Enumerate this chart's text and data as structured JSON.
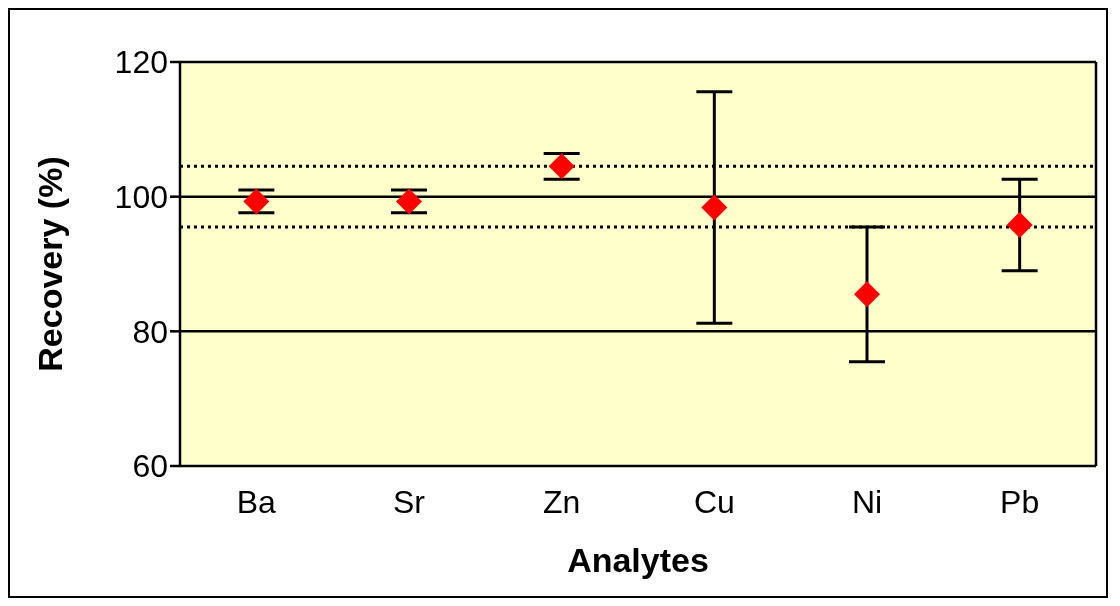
{
  "chart_data": {
    "type": "scatter",
    "xlabel": "Analytes",
    "ylabel": "Recovery (%)",
    "categories": [
      "Ba",
      "Sr",
      "Zn",
      "Cu",
      "Ni",
      "Pb"
    ],
    "values": [
      99.3,
      99.3,
      104.5,
      98.4,
      85.5,
      95.8
    ],
    "errors": [
      1.7,
      1.7,
      1.9,
      17.2,
      10,
      6.8
    ],
    "color": "#ff0000",
    "marker": "diamond",
    "ylim": [
      60,
      120
    ],
    "yticks": [
      60,
      80,
      100,
      120
    ],
    "grid": "y",
    "legend": false,
    "ref_lines": [
      {
        "axis": "y",
        "value": 104.5,
        "line_style": "dotted",
        "color": "#000000"
      },
      {
        "axis": "y",
        "value": 95.5,
        "line_style": "dotted",
        "color": "#000000"
      }
    ]
  }
}
